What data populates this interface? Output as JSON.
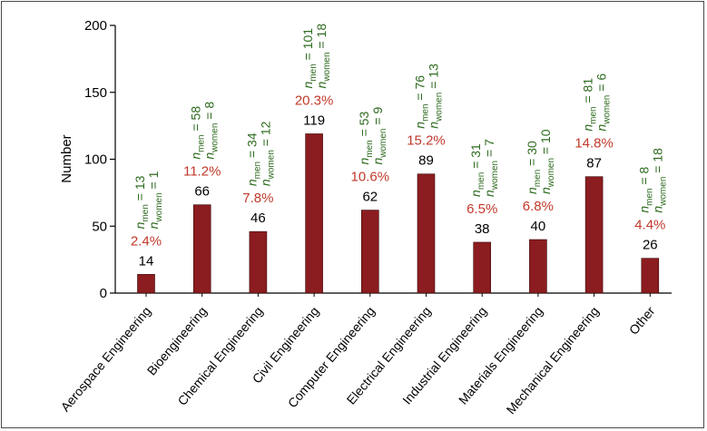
{
  "chart_data": {
    "type": "bar",
    "title": "",
    "xlabel": "",
    "ylabel": "Number",
    "ylim": [
      0,
      200
    ],
    "yticks": [
      "0",
      "50",
      "100",
      "150",
      "200"
    ],
    "grid": false,
    "categories": [
      "Aerospace Engineering",
      "Bioengineering",
      "Chemical Engineering",
      "Civil Engineering",
      "Computer Engineering",
      "Electrical Engineering",
      "Industrial Engineering",
      "Materials Engineering",
      "Mechanical Engineering",
      "Other"
    ],
    "values": [
      14,
      66,
      46,
      119,
      62,
      89,
      38,
      40,
      87,
      26
    ],
    "value_labels": [
      "14",
      "66",
      "46",
      "119",
      "62",
      "89",
      "38",
      "40",
      "87",
      "26"
    ],
    "percent_labels": [
      "2.4%",
      "11.2%",
      "7.8%",
      "20.3%",
      "10.6%",
      "15.2%",
      "6.5%",
      "6.8%",
      "14.8%",
      "4.4%"
    ],
    "n_men": [
      "13",
      "58",
      "34",
      "101",
      "53",
      "76",
      "31",
      "30",
      "81",
      "8"
    ],
    "n_women": [
      "1",
      "8",
      "12",
      "18",
      "9",
      "13",
      "7",
      "10",
      "6",
      "18"
    ],
    "annotation_symbol": "n",
    "annotation_sub_men": "men",
    "annotation_sub_women": "women",
    "annotation_eq": " = ",
    "colors": {
      "bar": "#8b1c1f",
      "percent": "#c0392b",
      "counts": "#2e6b1f",
      "value": "#000000"
    }
  }
}
